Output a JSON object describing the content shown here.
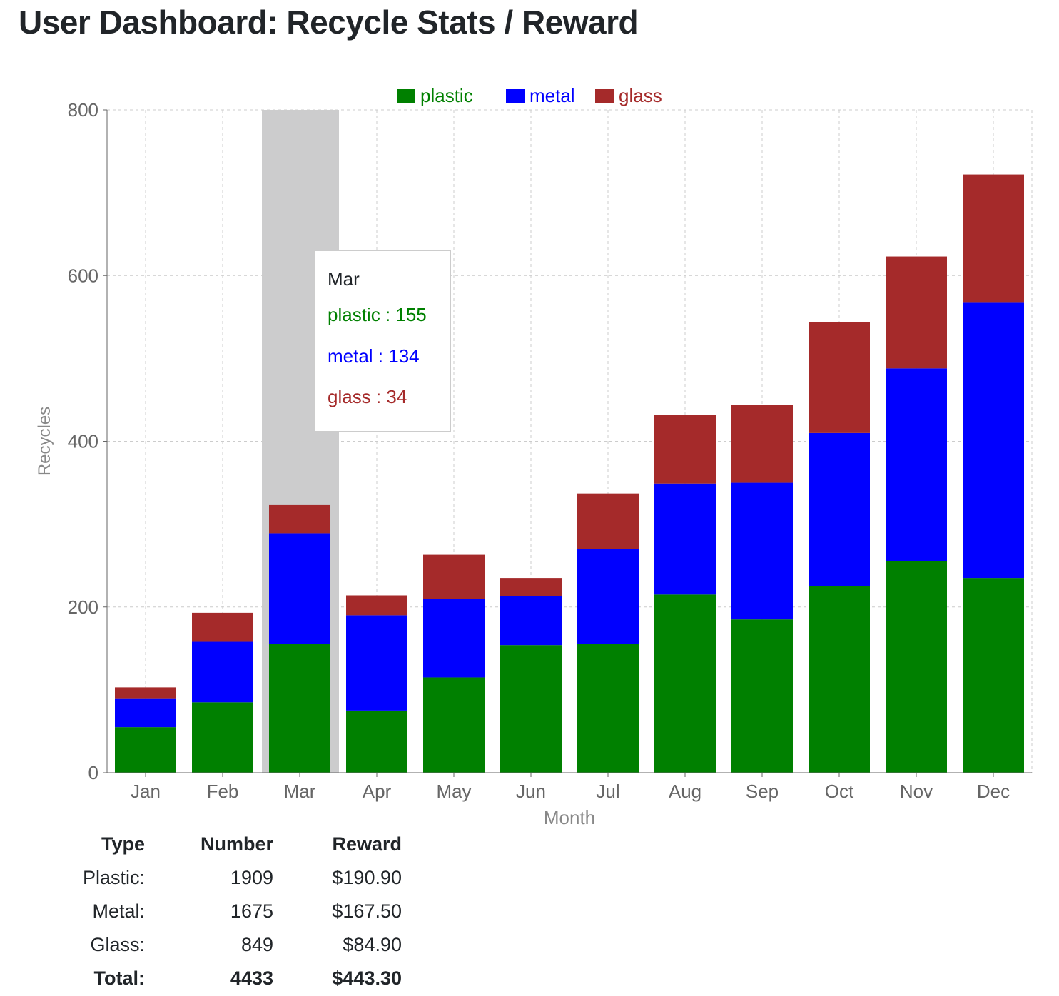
{
  "page_title": "User Dashboard: Recycle Stats / Reward",
  "chart_data": {
    "type": "bar",
    "stacked": true,
    "title": "",
    "xlabel": "Month",
    "ylabel": "Recycles",
    "ylim": [
      0,
      800
    ],
    "yticks": [
      0,
      200,
      400,
      600,
      800
    ],
    "grid": true,
    "legend_position": "top",
    "categories": [
      "Jan",
      "Feb",
      "Mar",
      "Apr",
      "May",
      "Jun",
      "Jul",
      "Aug",
      "Sep",
      "Oct",
      "Nov",
      "Dec"
    ],
    "series": [
      {
        "name": "plastic",
        "color": "#008000",
        "values": [
          55,
          85,
          155,
          75,
          115,
          154,
          155,
          215,
          185,
          225,
          255,
          235
        ]
      },
      {
        "name": "metal",
        "color": "#0000ff",
        "values": [
          34,
          73,
          134,
          115,
          95,
          59,
          115,
          134,
          165,
          185,
          233,
          333
        ]
      },
      {
        "name": "glass",
        "color": "#a52a2a",
        "values": [
          14,
          35,
          34,
          24,
          53,
          22,
          67,
          83,
          94,
          134,
          135,
          154
        ]
      }
    ],
    "highlighted_category": "Mar"
  },
  "tooltip": {
    "title": "Mar",
    "lines": [
      "plastic : 155",
      "metal : 134",
      "glass : 34"
    ]
  },
  "summary": {
    "headers": [
      "Type",
      "Number",
      "Reward"
    ],
    "rows": [
      [
        "Plastic:",
        "1909",
        "$190.90"
      ],
      [
        "Metal:",
        "1675",
        "$167.50"
      ],
      [
        "Glass:",
        "849",
        "$84.90"
      ]
    ],
    "total": [
      "Total:",
      "4433",
      "$443.30"
    ]
  }
}
